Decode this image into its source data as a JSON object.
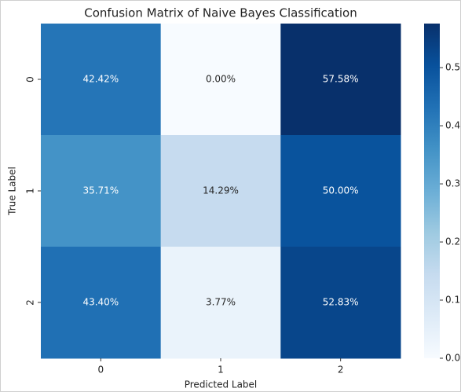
{
  "chart_data": {
    "type": "heatmap",
    "title": "Confusion Matrix of Naive Bayes Classification",
    "xlabel": "Predicted Label",
    "ylabel": "True Label",
    "x_categories": [
      "0",
      "1",
      "2"
    ],
    "y_categories": [
      "0",
      "1",
      "2"
    ],
    "values": [
      [
        0.4242,
        0.0,
        0.5758
      ],
      [
        0.3571,
        0.1429,
        0.5
      ],
      [
        0.434,
        0.0377,
        0.5283
      ]
    ],
    "value_labels": [
      [
        "42.42%",
        "0.00%",
        "57.58%"
      ],
      [
        "35.71%",
        "14.29%",
        "50.00%"
      ],
      [
        "43.40%",
        "3.77%",
        "52.83%"
      ]
    ],
    "colormap": "Blues",
    "clim": [
      0,
      0.5758
    ],
    "cticks": [
      {
        "value": 0,
        "label": "0.0"
      },
      0.1,
      0.2,
      0.3,
      0.4,
      0.5
    ]
  }
}
